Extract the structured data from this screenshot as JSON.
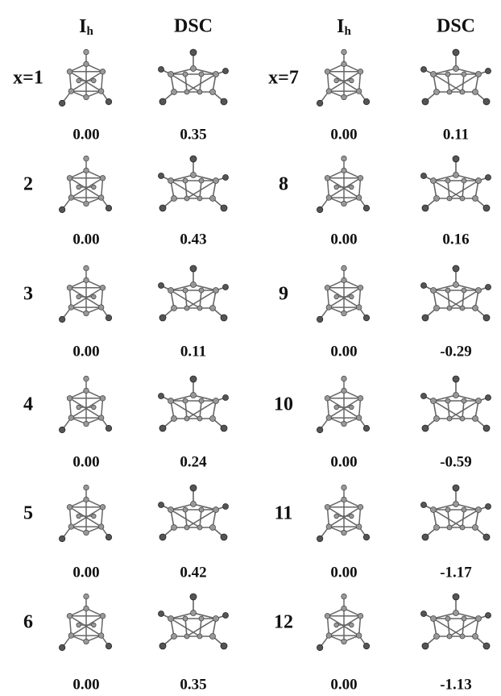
{
  "panels": [
    {
      "headers": {
        "ih": {
          "main": "I",
          "sub": "h"
        },
        "dsc": "DSC"
      },
      "rows": [
        {
          "label": "x=1",
          "ih": "0.00",
          "dsc": "0.35"
        },
        {
          "label": "2",
          "ih": "0.00",
          "dsc": "0.43"
        },
        {
          "label": "3",
          "ih": "0.00",
          "dsc": "0.11"
        },
        {
          "label": "4",
          "ih": "0.00",
          "dsc": "0.24"
        },
        {
          "label": "5",
          "ih": "0.00",
          "dsc": "0.42"
        },
        {
          "label": "6",
          "ih": "0.00",
          "dsc": "0.35"
        }
      ]
    },
    {
      "headers": {
        "ih": {
          "main": "I",
          "sub": "h"
        },
        "dsc": "DSC"
      },
      "rows": [
        {
          "label": "x=7",
          "ih": "0.00",
          "dsc": "0.11"
        },
        {
          "label": "8",
          "ih": "0.00",
          "dsc": "0.16"
        },
        {
          "label": "9",
          "ih": "0.00",
          "dsc": "-0.29"
        },
        {
          "label": "10",
          "ih": "0.00",
          "dsc": "-0.59"
        },
        {
          "label": "11",
          "ih": "0.00",
          "dsc": "-1.17"
        },
        {
          "label": "12",
          "ih": "0.00",
          "dsc": "-1.13"
        }
      ]
    }
  ]
}
